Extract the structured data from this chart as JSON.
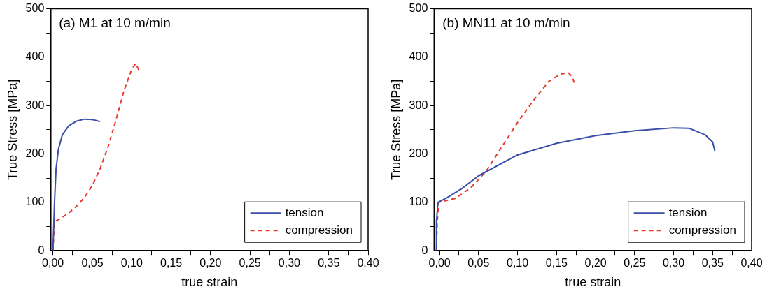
{
  "chart_data": [
    {
      "type": "line",
      "title": "(a) M1 at 10 m/min",
      "xlabel": "true strain",
      "ylabel": "True Stress [MPa]",
      "xlim": [
        -0.003,
        0.4
      ],
      "xticks": [
        {
          "value": 0,
          "label": "0,00"
        },
        {
          "value": 0.025,
          "label": null
        },
        {
          "value": 0.05,
          "label": "0,05"
        },
        {
          "value": 0.075,
          "label": null
        },
        {
          "value": 0.1,
          "label": "0,10"
        },
        {
          "value": 0.125,
          "label": null
        },
        {
          "value": 0.15,
          "label": "0,15"
        },
        {
          "value": 0.175,
          "label": null
        },
        {
          "value": 0.2,
          "label": "0,20"
        },
        {
          "value": 0.225,
          "label": null
        },
        {
          "value": 0.25,
          "label": "0,25"
        },
        {
          "value": 0.275,
          "label": null
        },
        {
          "value": 0.3,
          "label": "0,30"
        },
        {
          "value": 0.325,
          "label": null
        },
        {
          "value": 0.35,
          "label": "0,35"
        },
        {
          "value": 0.375,
          "label": null
        },
        {
          "value": 0.4,
          "label": "0,40"
        }
      ],
      "ylim": [
        0,
        500
      ],
      "yticks": [
        0,
        {
          "value": 50,
          "label": null
        },
        100,
        {
          "value": 150,
          "label": null
        },
        200,
        {
          "value": 250,
          "label": null
        },
        300,
        {
          "value": 350,
          "label": null
        },
        400,
        {
          "value": 450,
          "label": null
        },
        500
      ],
      "grid": false,
      "legend": "bottom right",
      "marker": "none",
      "series": [
        {
          "name": "tension",
          "color": "#3a4fa8",
          "line_style": "solid",
          "x": [
            0,
            0.002,
            0.004,
            0.007,
            0.012,
            0.02,
            0.03,
            0.04,
            0.05,
            0.06
          ],
          "values": [
            0,
            100,
            170,
            210,
            240,
            258,
            268,
            272,
            271,
            267
          ]
        },
        {
          "name": "compression",
          "color": "#e8392e",
          "line_style": "dashed",
          "x": [
            0,
            0.002,
            0.01,
            0.02,
            0.03,
            0.04,
            0.05,
            0.06,
            0.07,
            0.08,
            0.09,
            0.1,
            0.105,
            0.11
          ],
          "values": [
            0,
            60,
            67,
            78,
            92,
            110,
            135,
            170,
            215,
            270,
            330,
            375,
            387,
            370
          ]
        }
      ]
    },
    {
      "type": "line",
      "title": "(b) MN11 at 10 m/min",
      "xlabel": "true strain",
      "ylabel": "True Stress [MPa]",
      "xlim": [
        -0.007,
        0.4
      ],
      "xticks": [
        {
          "value": 0,
          "label": "0,00"
        },
        {
          "value": 0.025,
          "label": null
        },
        {
          "value": 0.05,
          "label": "0,05"
        },
        {
          "value": 0.075,
          "label": null
        },
        {
          "value": 0.1,
          "label": "0,10"
        },
        {
          "value": 0.125,
          "label": null
        },
        {
          "value": 0.15,
          "label": "0,15"
        },
        {
          "value": 0.175,
          "label": null
        },
        {
          "value": 0.2,
          "label": "0,20"
        },
        {
          "value": 0.225,
          "label": null
        },
        {
          "value": 0.25,
          "label": "0,25"
        },
        {
          "value": 0.275,
          "label": null
        },
        {
          "value": 0.3,
          "label": "0,30"
        },
        {
          "value": 0.325,
          "label": null
        },
        {
          "value": 0.35,
          "label": "0,35"
        },
        {
          "value": 0.375,
          "label": null
        },
        {
          "value": 0.4,
          "label": "0,40"
        }
      ],
      "ylim": [
        0,
        500
      ],
      "yticks": [
        0,
        {
          "value": 50,
          "label": null
        },
        100,
        {
          "value": 150,
          "label": null
        },
        200,
        {
          "value": 250,
          "label": null
        },
        300,
        {
          "value": 350,
          "label": null
        },
        400,
        {
          "value": 450,
          "label": null
        },
        500
      ],
      "grid": false,
      "legend": "bottom right",
      "marker": "none",
      "series": [
        {
          "name": "tension",
          "color": "#3a4fa8",
          "line_style": "solid",
          "x": [
            -0.004,
            -0.004,
            -0.002,
            0.01,
            0.03,
            0.05,
            0.1,
            0.15,
            0.2,
            0.25,
            0.3,
            0.32,
            0.34,
            0.35,
            0.353
          ],
          "values": [
            0,
            60,
            100,
            110,
            130,
            155,
            198,
            222,
            238,
            248,
            254,
            253,
            240,
            225,
            205
          ]
        },
        {
          "name": "compression",
          "color": "#e8392e",
          "line_style": "dashed",
          "x": [
            -0.004,
            -0.003,
            -0.001,
            0.02,
            0.04,
            0.06,
            0.08,
            0.1,
            0.12,
            0.14,
            0.155,
            0.165,
            0.17,
            0.173
          ],
          "values": [
            0,
            60,
            100,
            108,
            130,
            165,
            215,
            265,
            310,
            350,
            365,
            368,
            360,
            345
          ]
        }
      ]
    }
  ]
}
